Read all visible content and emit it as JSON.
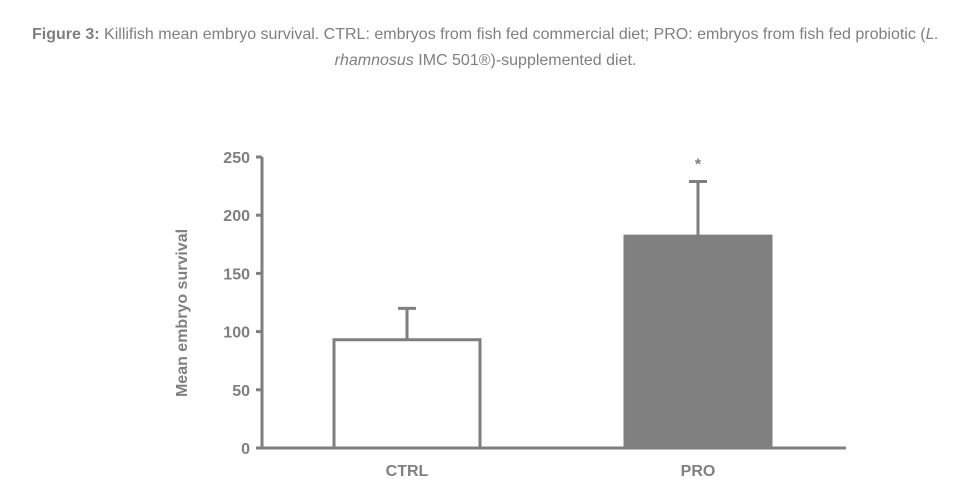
{
  "caption": {
    "label": "Figure 3:",
    "text_1": " Killifish mean embryo survival. CTRL: embryos from fish fed commercial diet; PRO: embryos from fish fed probiotic (",
    "species": "L. rhamnosus",
    "text_2": " IMC 501®)-supplemented diet."
  },
  "chart_data": {
    "type": "bar",
    "categories": [
      "CTRL",
      "PRO"
    ],
    "values": [
      93,
      182
    ],
    "error_upper": [
      120,
      229
    ],
    "annotations": [
      "",
      "*"
    ],
    "ylabel": "Mean embryo survival",
    "ylim": [
      0,
      250
    ],
    "yticks": [
      0,
      50,
      100,
      150,
      200,
      250
    ],
    "grid": false,
    "bar_colors": [
      "#ffffff",
      "#808080"
    ],
    "edge_color": "#7f7f7f",
    "axis_color": "#7f7f7f"
  }
}
